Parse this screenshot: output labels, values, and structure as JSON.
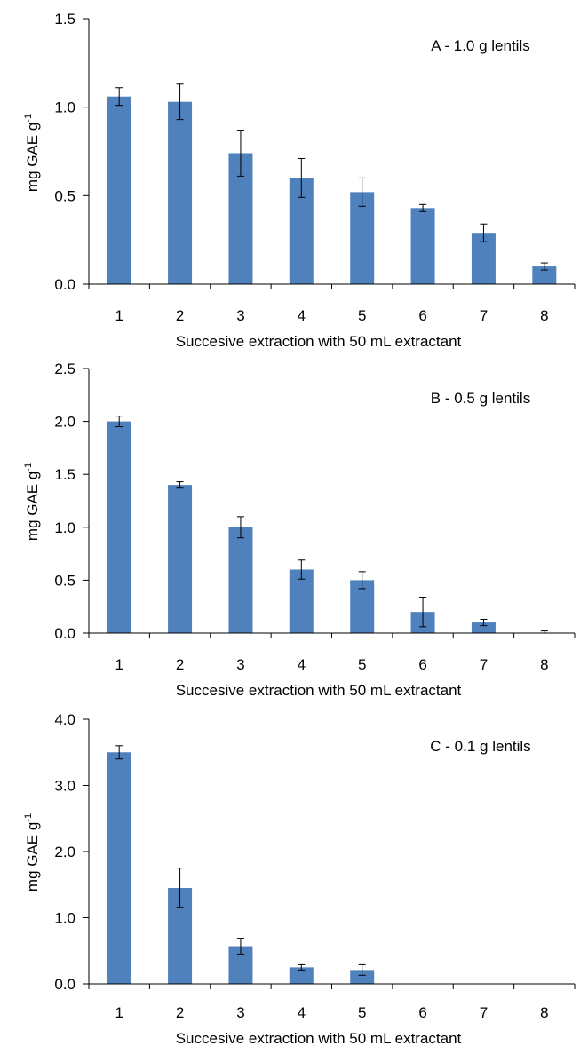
{
  "chart_data": [
    {
      "type": "bar",
      "title": "A - 1.0 g lentils",
      "xlabel": "Succesive extraction with 50 mL extractant",
      "ylabel": "mg GAE g",
      "ylabel_sup": "-1",
      "categories": [
        "1",
        "2",
        "3",
        "4",
        "5",
        "6",
        "7",
        "8"
      ],
      "values": [
        1.06,
        1.03,
        0.74,
        0.6,
        0.52,
        0.43,
        0.29,
        0.1
      ],
      "errors": [
        0.05,
        0.1,
        0.13,
        0.11,
        0.08,
        0.02,
        0.05,
        0.02
      ],
      "ylim": [
        0,
        1.5
      ],
      "yticks": [
        "0.0",
        "0.5",
        "1.0",
        "1.5"
      ],
      "ytick_values": [
        0,
        0.5,
        1.0,
        1.5
      ],
      "bar_color": "#4f81bd",
      "grid": false
    },
    {
      "type": "bar",
      "title": "B - 0.5 g lentils",
      "xlabel": "Succesive extraction with 50 mL extractant",
      "ylabel": "mg GAE g",
      "ylabel_sup": "-1",
      "categories": [
        "1",
        "2",
        "3",
        "4",
        "5",
        "6",
        "7",
        "8"
      ],
      "values": [
        2.0,
        1.4,
        1.0,
        0.6,
        0.5,
        0.2,
        0.1,
        0.0
      ],
      "errors": [
        0.05,
        0.03,
        0.1,
        0.09,
        0.08,
        0.14,
        0.03,
        0.02
      ],
      "ylim": [
        0,
        2.5
      ],
      "yticks": [
        "0.0",
        "0.5",
        "1.0",
        "1.5",
        "2.0",
        "2.5"
      ],
      "ytick_values": [
        0,
        0.5,
        1.0,
        1.5,
        2.0,
        2.5
      ],
      "bar_color": "#4f81bd",
      "grid": false
    },
    {
      "type": "bar",
      "title": "C - 0.1 g lentils",
      "xlabel": "Succesive extraction with 50 mL extractant",
      "ylabel": "mg GAE g",
      "ylabel_sup": "-1",
      "categories": [
        "1",
        "2",
        "3",
        "4",
        "5",
        "6",
        "7",
        "8"
      ],
      "values": [
        3.5,
        1.45,
        0.57,
        0.25,
        0.21,
        0,
        0,
        0
      ],
      "errors": [
        0.1,
        0.3,
        0.12,
        0.04,
        0.08,
        0,
        0,
        0
      ],
      "ylim": [
        0,
        4.0
      ],
      "yticks": [
        "0.0",
        "1.0",
        "2.0",
        "3.0",
        "4.0"
      ],
      "ytick_values": [
        0,
        1.0,
        2.0,
        3.0,
        4.0
      ],
      "bar_color": "#4f81bd",
      "grid": false
    }
  ]
}
